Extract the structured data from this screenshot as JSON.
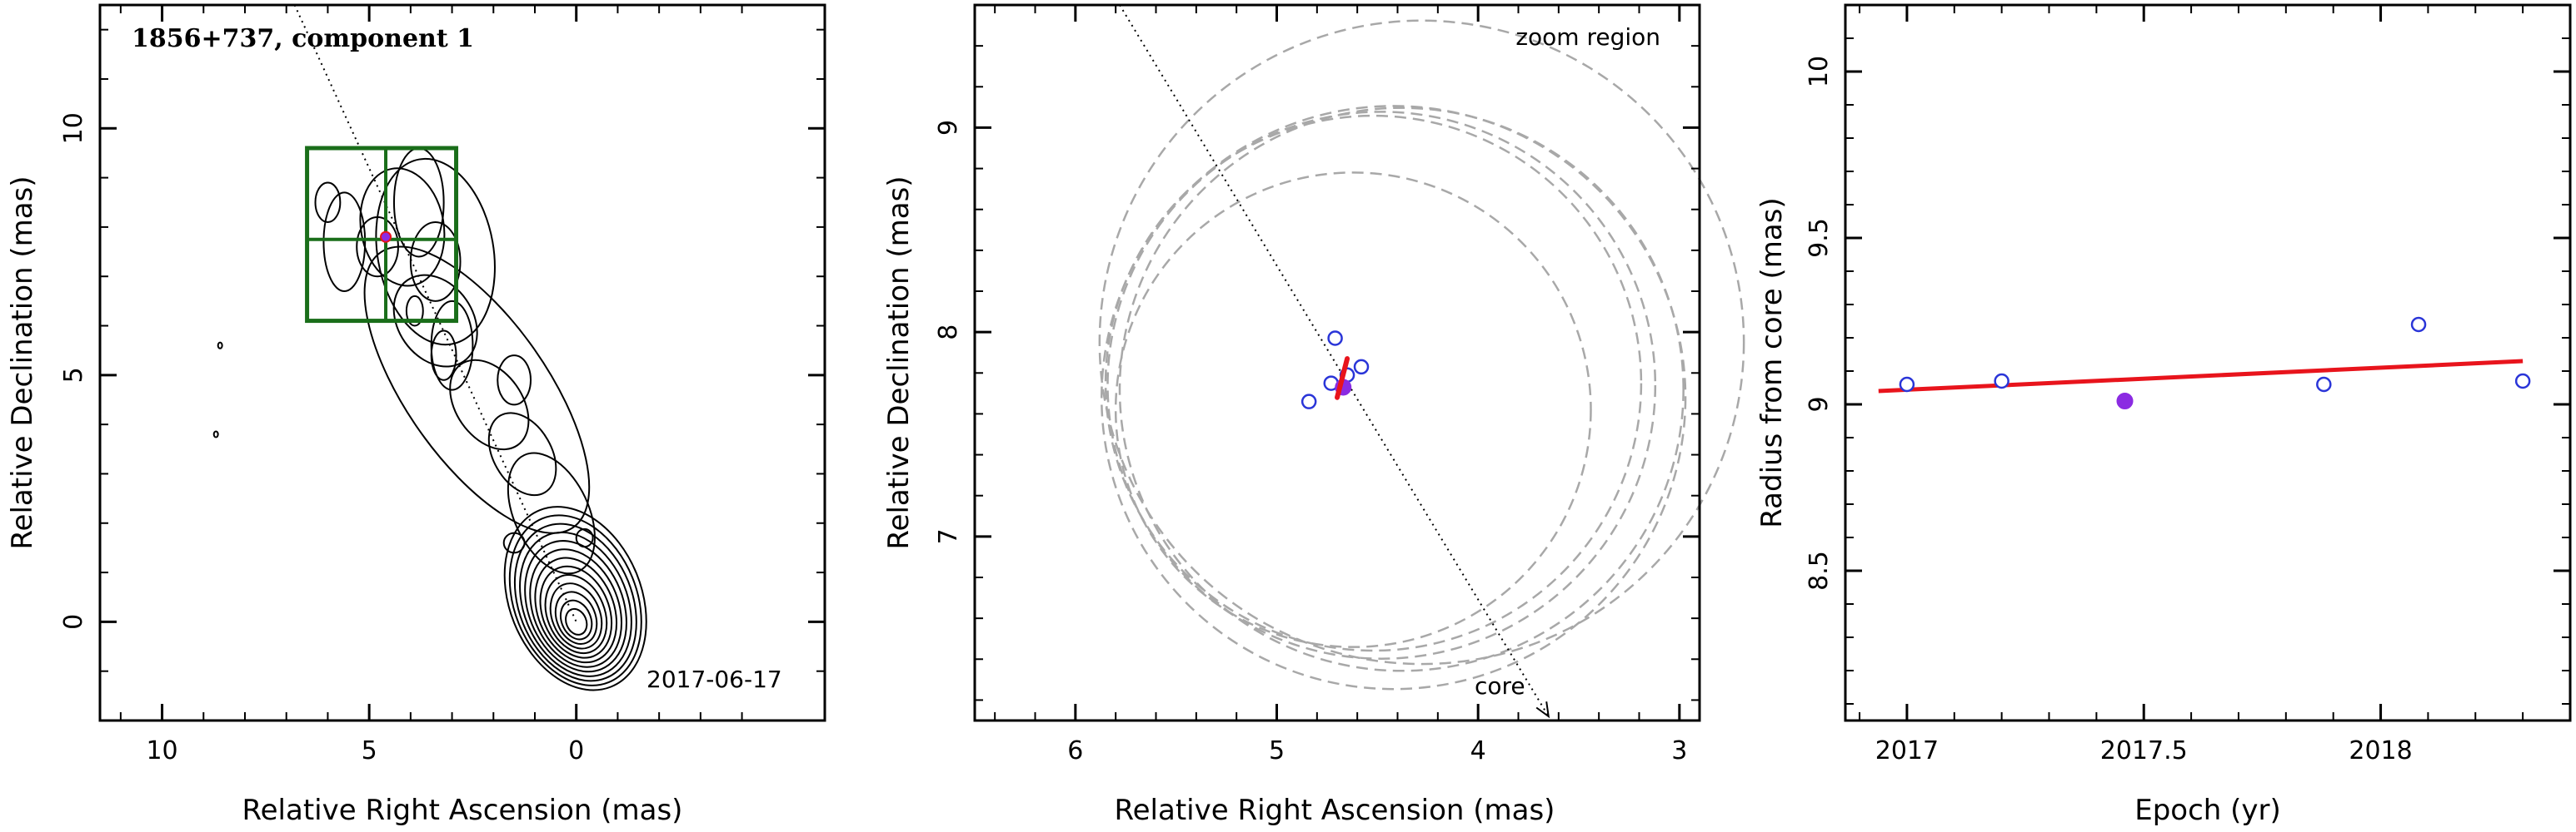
{
  "chart_data": [
    {
      "type": "contour",
      "title": "1856+737, component 1",
      "date_label": "2017-06-17",
      "xlabel": "Relative Right Ascension (mas)",
      "ylabel": "Relative Declination (mas)",
      "xlim": [
        11.5,
        -6
      ],
      "ylim": [
        -2,
        12.5
      ],
      "x_ticks": [
        10,
        5,
        0
      ],
      "y_ticks": [
        0,
        5,
        10
      ],
      "x_tick_labels": [
        "10",
        "5",
        "0"
      ],
      "y_tick_labels": [
        "0",
        "5",
        "10"
      ],
      "core_position": [
        0,
        0
      ],
      "component_position": [
        4.6,
        7.8
      ],
      "zoom_box": {
        "x_range": [
          6.5,
          2.9
        ],
        "y_range": [
          6.1,
          9.6
        ],
        "center": [
          4.6,
          7.75
        ]
      },
      "jet_axis_line": [
        [
          6.8,
          12.5
        ],
        [
          0,
          0
        ]
      ]
    },
    {
      "type": "scatter",
      "xlabel": "Relative Right Ascension (mas)",
      "ylabel": "Relative Declination (mas)",
      "xlim": [
        6.5,
        2.9
      ],
      "ylim": [
        6.1,
        9.6
      ],
      "x_ticks": [
        6,
        5,
        4,
        3
      ],
      "y_ticks": [
        7,
        8,
        9
      ],
      "x_tick_labels": [
        "6",
        "5",
        "4",
        "3"
      ],
      "y_tick_labels": [
        "7",
        "8",
        "9"
      ],
      "annotations": {
        "zoom_region": "zoom region",
        "core": "core"
      },
      "open_points": [
        {
          "x": 4.84,
          "y": 7.66
        },
        {
          "x": 4.73,
          "y": 7.75
        },
        {
          "x": 4.71,
          "y": 7.97
        },
        {
          "x": 4.65,
          "y": 7.79
        },
        {
          "x": 4.58,
          "y": 7.83
        }
      ],
      "filled_point": {
        "x": 4.67,
        "y": 7.73
      },
      "velocity_vector": [
        [
          4.7,
          7.68
        ],
        [
          4.65,
          7.87
        ]
      ],
      "error_circles": [
        {
          "cx": 4.28,
          "cy": 7.95,
          "r": 1.6
        },
        {
          "cx": 4.52,
          "cy": 7.75,
          "r": 1.33
        },
        {
          "cx": 4.62,
          "cy": 7.62,
          "r": 1.18
        },
        {
          "cx": 4.42,
          "cy": 7.68,
          "r": 1.45
        },
        {
          "cx": 4.38,
          "cy": 7.72,
          "r": 1.4
        },
        {
          "cx": 4.48,
          "cy": 7.74,
          "r": 1.36
        }
      ],
      "jet_axis_line": [
        [
          5.78,
          9.6
        ],
        [
          3.65,
          6.12
        ]
      ],
      "colors": {
        "open": "#2a35d8",
        "filled": "#8b2be2",
        "vector": "#e8141c",
        "circles": "#a8a8a8"
      }
    },
    {
      "type": "scatter",
      "xlabel": "Epoch (yr)",
      "ylabel": "Radius from core (mas)",
      "xlim": [
        2016.87,
        2018.4
      ],
      "ylim": [
        8.05,
        10.2
      ],
      "x_ticks": [
        2017,
        2017.5,
        2018
      ],
      "y_ticks": [
        8.5,
        9,
        9.5,
        10
      ],
      "x_tick_labels": [
        "2017",
        "2017.5",
        "2018"
      ],
      "y_tick_labels": [
        "8.5",
        "9",
        "9.5",
        "10"
      ],
      "open_points": [
        {
          "x": 2017.0,
          "y": 9.06
        },
        {
          "x": 2017.2,
          "y": 9.07
        },
        {
          "x": 2017.88,
          "y": 9.06
        },
        {
          "x": 2018.08,
          "y": 9.24
        },
        {
          "x": 2018.3,
          "y": 9.07
        }
      ],
      "filled_point": {
        "x": 2017.46,
        "y": 9.01
      },
      "fit_line": [
        [
          2016.94,
          9.04
        ],
        [
          2018.3,
          9.13
        ]
      ],
      "colors": {
        "open": "#2a35d8",
        "filled": "#8b2be2",
        "fit": "#e8141c"
      }
    }
  ]
}
